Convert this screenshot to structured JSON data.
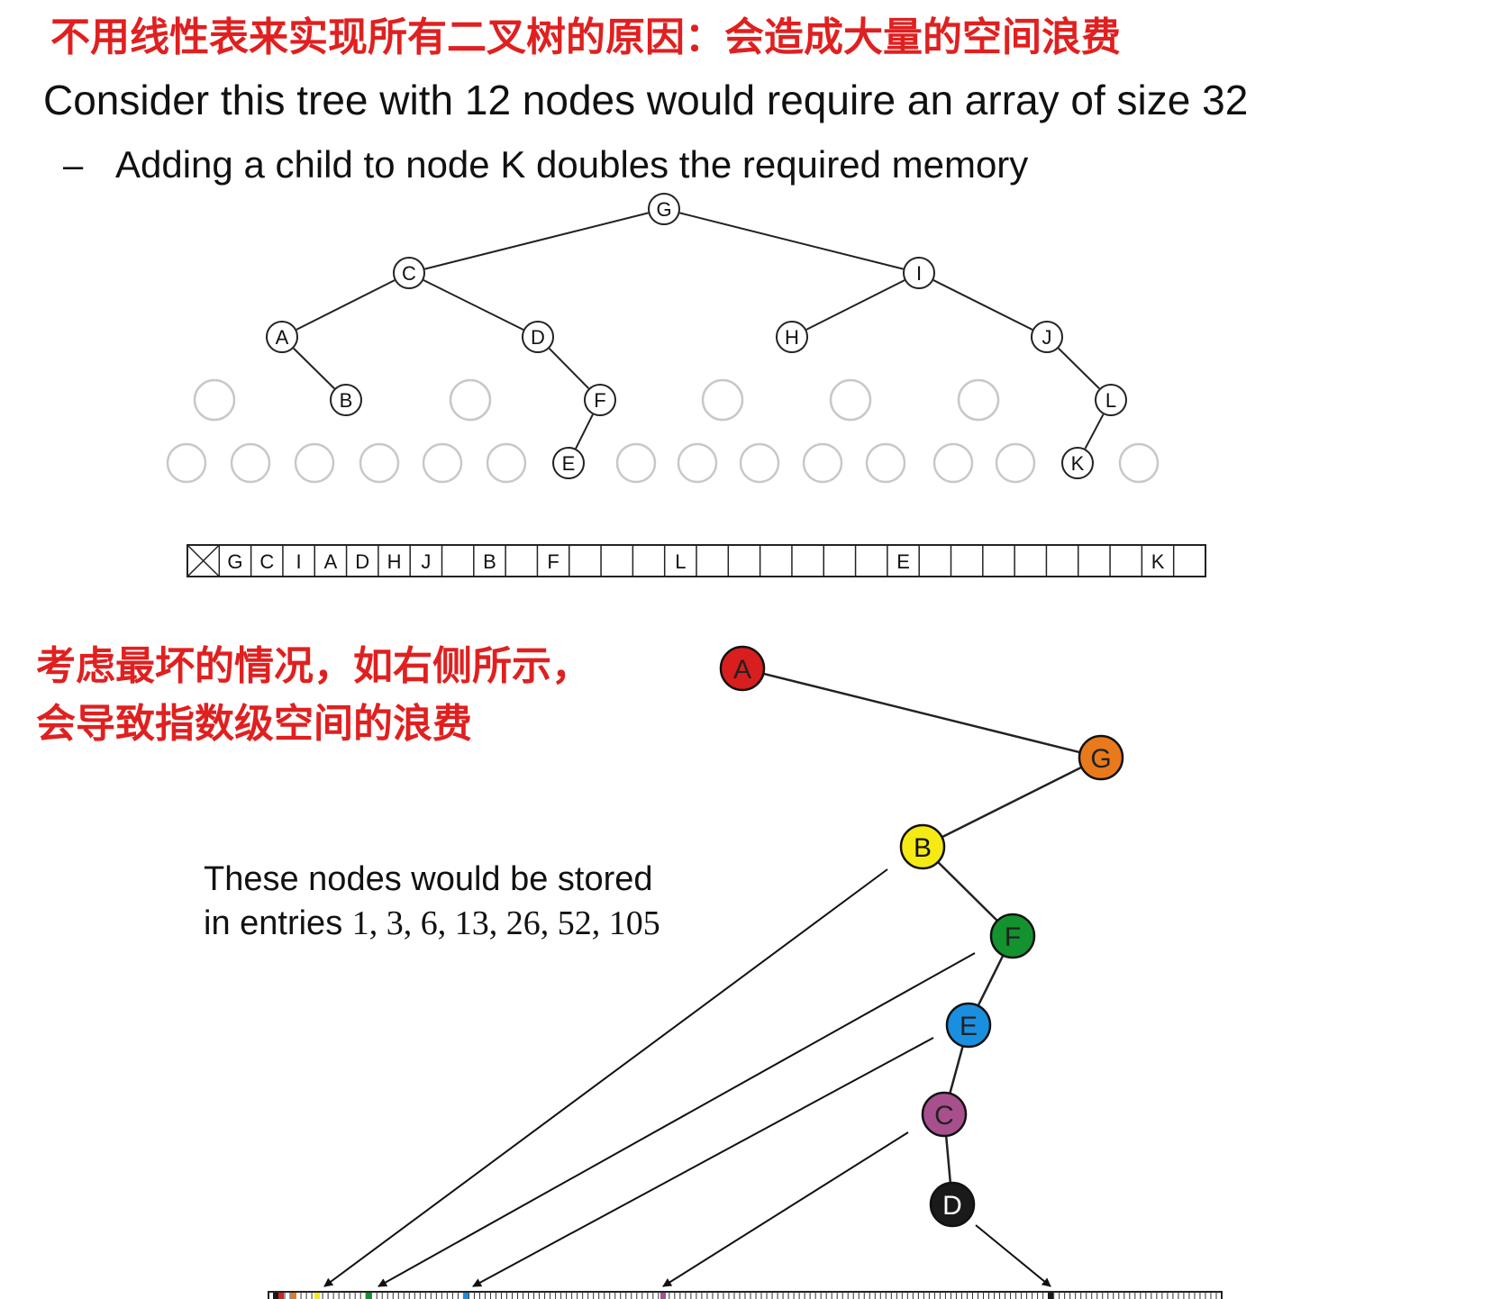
{
  "title_cn": "不用线性表来实现所有二叉树的原因：会造成大量的空间浪费",
  "heading": "Consider this tree with 12 nodes would require an array of size 32",
  "bullet": {
    "dash": "–",
    "text": "Adding a child to node K doubles the required memory"
  },
  "tree": {
    "nodes": [
      "G",
      "C",
      "I",
      "A",
      "D",
      "H",
      "J",
      "B",
      "F",
      "L",
      "E",
      "K"
    ],
    "edges": [
      [
        "G",
        "C"
      ],
      [
        "G",
        "I"
      ],
      [
        "C",
        "A"
      ],
      [
        "C",
        "D"
      ],
      [
        "I",
        "H"
      ],
      [
        "I",
        "J"
      ],
      [
        "A",
        "B"
      ],
      [
        "D",
        "F"
      ],
      [
        "J",
        "L"
      ],
      [
        "F",
        "E"
      ],
      [
        "L",
        "K"
      ]
    ]
  },
  "array": {
    "size": 32,
    "cells": [
      "",
      "G",
      "C",
      "I",
      "A",
      "D",
      "H",
      "J",
      "",
      "B",
      "",
      "F",
      "",
      "",
      "",
      "L",
      "",
      "",
      "",
      "",
      "",
      "",
      "E",
      "",
      "",
      "",
      "",
      "",
      "",
      "",
      "K",
      ""
    ]
  },
  "note_cn": [
    "考虑最坏的情况，如右侧所示，",
    "会导致指数级空间的浪费"
  ],
  "chain": {
    "nodes": [
      {
        "label": "A",
        "color": "#d81e1e"
      },
      {
        "label": "G",
        "color": "#e87a1c"
      },
      {
        "label": "B",
        "color": "#f5ea14"
      },
      {
        "label": "F",
        "color": "#14922f"
      },
      {
        "label": "E",
        "color": "#1a8fe0"
      },
      {
        "label": "C",
        "color": "#a8508e"
      },
      {
        "label": "D",
        "color": "#1a1a1a"
      }
    ]
  },
  "caption": {
    "line1": "These nodes would be stored",
    "line2_prefix": "in entries ",
    "line2_numbers": "1, 3, 6, 13, 26, 52, 105"
  }
}
